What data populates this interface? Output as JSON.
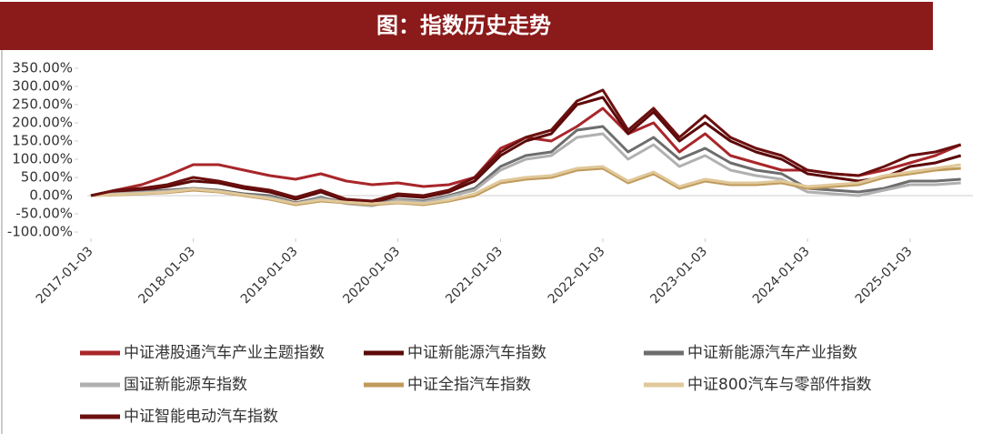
{
  "chart_data": {
    "type": "line",
    "title": "图：指数历史走势",
    "x": [
      "2017-01-03",
      "2017-04-03",
      "2017-07-03",
      "2017-10-03",
      "2018-01-03",
      "2018-04-03",
      "2018-07-03",
      "2018-10-03",
      "2019-01-03",
      "2019-04-03",
      "2019-07-03",
      "2019-10-03",
      "2020-01-03",
      "2020-04-03",
      "2020-07-03",
      "2020-10-03",
      "2021-01-03",
      "2021-04-03",
      "2021-07-03",
      "2021-10-03",
      "2022-01-03",
      "2022-04-03",
      "2022-07-03",
      "2022-10-03",
      "2023-01-03",
      "2023-04-03",
      "2023-07-03",
      "2023-10-03",
      "2024-01-03",
      "2024-04-03",
      "2024-07-03",
      "2024-10-03",
      "2025-01-03",
      "2025-04-03",
      "2025-07-03"
    ],
    "xlim": [
      "2017-01-03",
      "2025-08-15"
    ],
    "xticks": [
      "2017-01-03",
      "2018-01-03",
      "2019-01-03",
      "2020-01-03",
      "2021-01-03",
      "2022-01-03",
      "2023-01-03",
      "2024-01-03",
      "2025-01-03"
    ],
    "ylim": [
      -100,
      350
    ],
    "yticks": [
      {
        "value": -100,
        "label": "-100.00%"
      },
      {
        "value": -50,
        "label": "-50.00%"
      },
      {
        "value": 0,
        "label": "0.00%"
      },
      {
        "value": 50,
        "label": "50.00%"
      },
      {
        "value": 100,
        "label": "100.00%"
      },
      {
        "value": 150,
        "label": "150.00%"
      },
      {
        "value": 200,
        "label": "200.00%"
      },
      {
        "value": 250,
        "label": "250.00%"
      },
      {
        "value": 300,
        "label": "300.00%"
      },
      {
        "value": 350,
        "label": "350.00%"
      }
    ],
    "series": [
      {
        "name": "中证港股通汽车产业主题指数",
        "color": "#a8262a",
        "values": [
          0,
          15,
          30,
          55,
          85,
          85,
          70,
          55,
          45,
          60,
          40,
          30,
          35,
          25,
          30,
          50,
          130,
          160,
          150,
          190,
          240,
          170,
          200,
          120,
          170,
          110,
          90,
          70,
          70,
          60,
          55,
          70,
          90,
          110,
          140
        ]
      },
      {
        "name": "中证新能源汽车指数",
        "color": "#5c0a0a",
        "values": [
          0,
          10,
          15,
          25,
          40,
          35,
          20,
          10,
          -10,
          10,
          -15,
          -20,
          0,
          -5,
          10,
          40,
          110,
          150,
          170,
          250,
          270,
          170,
          230,
          150,
          200,
          150,
          120,
          100,
          60,
          50,
          40,
          50,
          80,
          90,
          110
        ]
      },
      {
        "name": "中证新能源汽车产业指数",
        "color": "#6d6d6d",
        "values": [
          0,
          5,
          10,
          15,
          20,
          15,
          5,
          0,
          -20,
          -5,
          -20,
          -25,
          -10,
          -15,
          0,
          20,
          80,
          110,
          120,
          180,
          190,
          120,
          160,
          100,
          130,
          90,
          70,
          60,
          20,
          15,
          10,
          20,
          40,
          40,
          45
        ]
      },
      {
        "name": "国证新能源车指数",
        "color": "#b0b0b0",
        "values": [
          0,
          5,
          8,
          12,
          18,
          12,
          2,
          -5,
          -22,
          -8,
          -22,
          -28,
          -12,
          -18,
          -3,
          15,
          70,
          100,
          110,
          160,
          170,
          100,
          140,
          80,
          110,
          70,
          55,
          45,
          10,
          5,
          0,
          15,
          30,
          30,
          35
        ]
      },
      {
        "name": "中证全指汽车指数",
        "color": "#c09a5b",
        "values": [
          0,
          2,
          5,
          8,
          15,
          10,
          0,
          -10,
          -25,
          -15,
          -20,
          -25,
          -20,
          -25,
          -15,
          0,
          35,
          45,
          50,
          70,
          75,
          35,
          60,
          20,
          40,
          30,
          30,
          35,
          20,
          25,
          30,
          50,
          60,
          70,
          75
        ]
      },
      {
        "name": "中证800汽车与零部件指数",
        "color": "#e0c89a",
        "values": [
          0,
          3,
          6,
          10,
          18,
          12,
          2,
          -8,
          -22,
          -12,
          -18,
          -22,
          -18,
          -22,
          -12,
          5,
          40,
          50,
          55,
          75,
          80,
          40,
          65,
          25,
          45,
          35,
          35,
          40,
          25,
          30,
          35,
          55,
          65,
          75,
          85
        ]
      },
      {
        "name": "中证智能电动汽车指数",
        "color": "#6b0f0f",
        "values": [
          0,
          15,
          20,
          30,
          50,
          40,
          25,
          15,
          -5,
          15,
          -10,
          -15,
          5,
          0,
          15,
          50,
          120,
          160,
          180,
          260,
          290,
          180,
          240,
          160,
          220,
          160,
          130,
          110,
          70,
          60,
          55,
          80,
          110,
          120,
          140
        ]
      }
    ]
  }
}
